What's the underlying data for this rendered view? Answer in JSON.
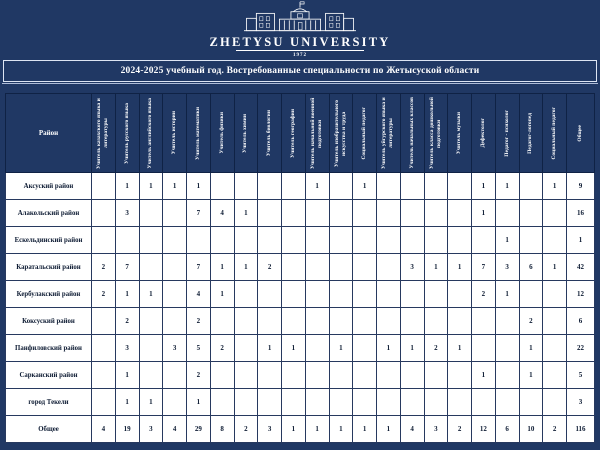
{
  "banner": {
    "university_name": "ZHETYSU UNIVERSITY",
    "founding_year": "1972"
  },
  "title": "2024-2025 учебный год. Востребованные специальности по Жетысуской области",
  "colors": {
    "navy": "#203864",
    "header_text": "#ffffff",
    "cell_border": "#27395f",
    "cell_text": "#0d1b33"
  },
  "table": {
    "district_column_header": "Район",
    "columns": [
      "Учитель казахского языка и литературы",
      "Учитель русского языка",
      "Учитель английского языка",
      "Учитель истории",
      "Учитель математики",
      "Учитель физики",
      "Учитель химии",
      "Учитель биологии",
      "Учитель географии",
      "Учитель начальной военной подготовки",
      "Учитель изобразительного искусства и труда",
      "Социальный педагог",
      "Учитель уйгурского языка и литературы",
      "Учитель начальных классов",
      "Учитель класса дошкольной подготовки",
      "Учитель музыки",
      "Дефектолог",
      "Педагог - психолог",
      "Педагог-логопед",
      "Социальный педагог",
      "Общее"
    ],
    "rows": [
      {
        "district": "Аксуский район",
        "values": [
          "",
          "1",
          "1",
          "1",
          "1",
          "",
          "",
          "",
          "",
          "1",
          "",
          "1",
          "",
          "",
          "",
          "",
          "1",
          "1",
          "",
          "1"
        ],
        "total": "9"
      },
      {
        "district": "Алакольский район",
        "values": [
          "",
          "3",
          "",
          "",
          "7",
          "4",
          "1",
          "",
          "",
          "",
          "",
          "",
          "",
          "",
          "",
          "",
          "1",
          "",
          "",
          ""
        ],
        "total": "16"
      },
      {
        "district": "Ескельдинский район",
        "values": [
          "",
          "",
          "",
          "",
          "",
          "",
          "",
          "",
          "",
          "",
          "",
          "",
          "",
          "",
          "",
          "",
          "",
          "1",
          "",
          ""
        ],
        "total": "1"
      },
      {
        "district": "Каратальский район",
        "values": [
          "2",
          "7",
          "",
          "",
          "7",
          "1",
          "1",
          "2",
          "",
          "",
          "",
          "",
          "",
          "3",
          "1",
          "1",
          "7",
          "3",
          "6",
          "1"
        ],
        "total": "42"
      },
      {
        "district": "Кербулакский район",
        "values": [
          "2",
          "1",
          "1",
          "",
          "4",
          "1",
          "",
          "",
          "",
          "",
          "",
          "",
          "",
          "",
          "",
          "",
          "2",
          "1",
          "",
          ""
        ],
        "total": "12"
      },
      {
        "district": "Коксуский район",
        "values": [
          "",
          "2",
          "",
          "",
          "2",
          "",
          "",
          "",
          "",
          "",
          "",
          "",
          "",
          "",
          "",
          "",
          "",
          "",
          "2",
          ""
        ],
        "total": "6"
      },
      {
        "district": "Панфиловский район",
        "values": [
          "",
          "3",
          "",
          "3",
          "5",
          "2",
          "",
          "1",
          "1",
          "",
          "1",
          "",
          "1",
          "1",
          "2",
          "1",
          "",
          "",
          "1",
          ""
        ],
        "total": "22"
      },
      {
        "district": "Сарканский район",
        "values": [
          "",
          "1",
          "",
          "",
          "2",
          "",
          "",
          "",
          "",
          "",
          "",
          "",
          "",
          "",
          "",
          "",
          "1",
          "",
          "1",
          ""
        ],
        "total": "5"
      },
      {
        "district": "город Текели",
        "values": [
          "",
          "1",
          "1",
          "",
          "1",
          "",
          "",
          "",
          "",
          "",
          "",
          "",
          "",
          "",
          "",
          "",
          "",
          "",
          "",
          ""
        ],
        "total": "3"
      }
    ],
    "total_row": {
      "district": "Общее",
      "values": [
        "4",
        "19",
        "3",
        "4",
        "29",
        "8",
        "2",
        "3",
        "1",
        "1",
        "1",
        "1",
        "1",
        "4",
        "3",
        "2",
        "12",
        "6",
        "10",
        "2"
      ],
      "total": "116"
    }
  }
}
